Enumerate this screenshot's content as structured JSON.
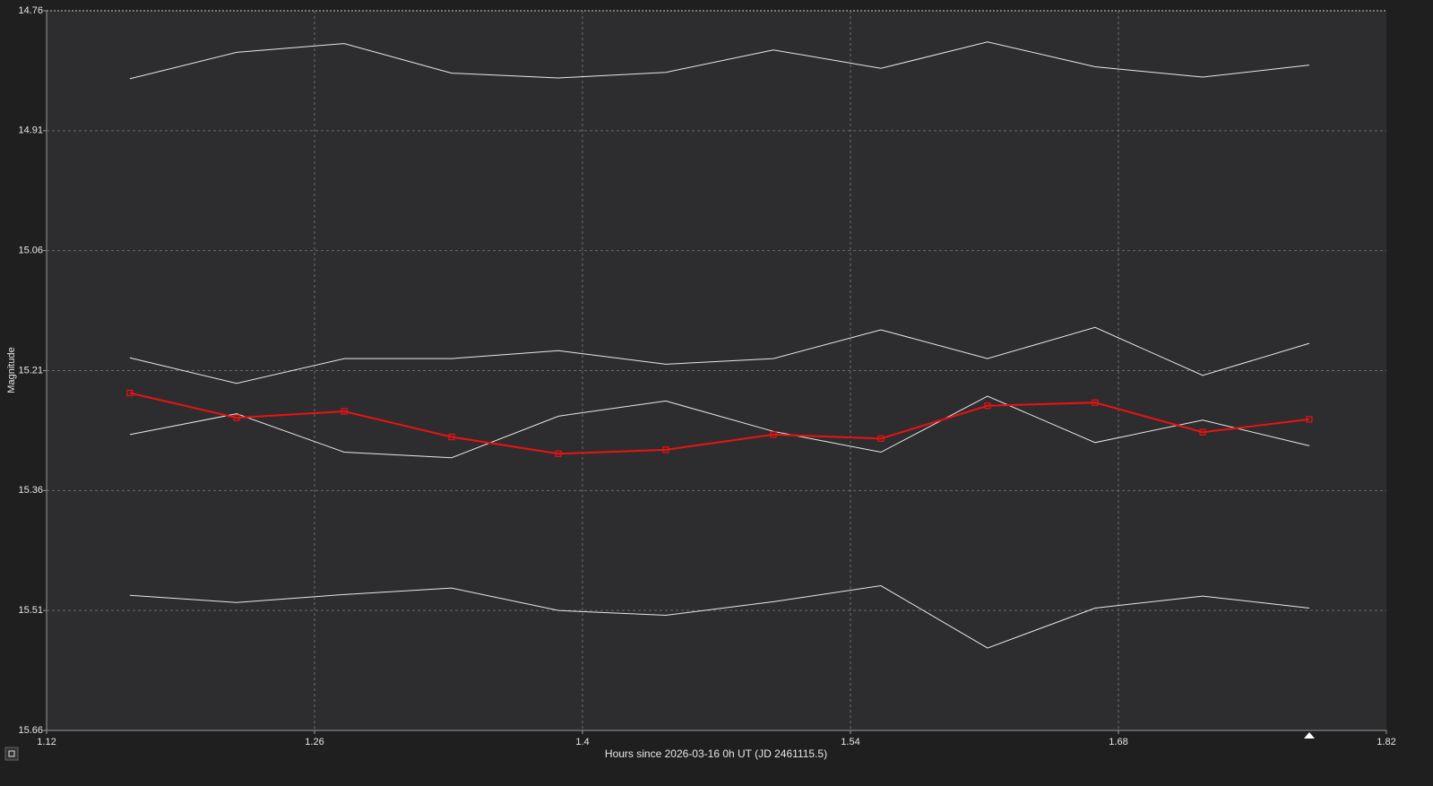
{
  "chart_data": {
    "type": "line",
    "xlabel": "Hours since 2026-03-16 0h UT (JD 2461115.5)",
    "ylabel": "Magnitude",
    "x": [
      1.1635,
      1.2193,
      1.2755,
      1.3316,
      1.3874,
      1.4435,
      1.4997,
      1.5559,
      1.6116,
      1.6678,
      1.724,
      1.7797
    ],
    "series": [
      {
        "color": "#e8e8e8",
        "markers": false,
        "values": [
          14.845,
          14.812,
          14.801,
          14.838,
          14.844,
          14.837,
          14.809,
          14.832,
          14.799,
          14.83,
          14.843,
          14.828
        ]
      },
      {
        "color": "#e8e8e8",
        "markers": false,
        "values": [
          15.194,
          15.226,
          15.195,
          15.195,
          15.185,
          15.202,
          15.195,
          15.159,
          15.195,
          15.156,
          15.216,
          15.176
        ]
      },
      {
        "color": "#e8e8e8",
        "markers": false,
        "values": [
          15.29,
          15.264,
          15.312,
          15.319,
          15.267,
          15.248,
          15.286,
          15.312,
          15.242,
          15.3,
          15.272,
          15.304
        ]
      },
      {
        "color": "#e8e8e8",
        "markers": false,
        "values": [
          15.491,
          15.5,
          15.49,
          15.482,
          15.51,
          15.516,
          15.499,
          15.479,
          15.557,
          15.507,
          15.492,
          15.507
        ]
      },
      {
        "color": "#ee1111",
        "markers": true,
        "values": [
          15.238,
          15.269,
          15.261,
          15.293,
          15.314,
          15.309,
          15.29,
          15.295,
          15.254,
          15.25,
          15.287,
          15.271
        ]
      }
    ],
    "xlim": [
      1.12,
      1.82
    ],
    "xticks": [
      1.12,
      1.26,
      1.4,
      1.54,
      1.68,
      1.82
    ],
    "ylim": [
      14.76,
      15.66
    ],
    "yticks": [
      14.76,
      14.91,
      15.06,
      15.21,
      15.36,
      15.51,
      15.66
    ],
    "y_inverted": true,
    "grid": true
  }
}
